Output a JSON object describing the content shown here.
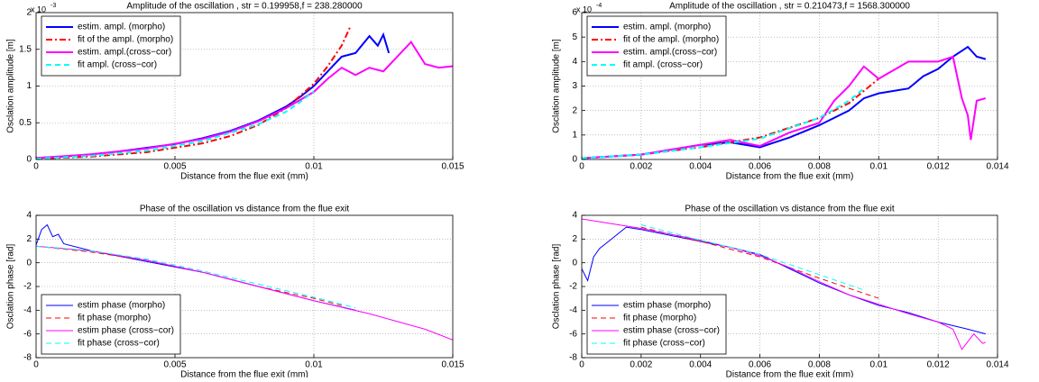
{
  "chart_data": [
    {
      "type": "line",
      "title": "Amplitude of the oscillation , str = 0.199958,f = 238.280000",
      "x_label": "Distance from the flue exit (mm)",
      "y_label": "Osclation amplitude [m]",
      "y_multiplier": {
        "base": "x 10",
        "exponent": "-3"
      },
      "xlim": [
        0,
        0.015
      ],
      "xticks": [
        0,
        0.005,
        0.01,
        0.015
      ],
      "ylim": [
        0,
        2
      ],
      "yticks": [
        0,
        0.5,
        1,
        1.5,
        2
      ],
      "grid": true,
      "legend": "upper left",
      "line_width": 2,
      "series": [
        {
          "name": "estim. ampl. (morpho)",
          "color": "#0000ff",
          "style": "solid",
          "x": [
            0,
            0.001,
            0.002,
            0.003,
            0.004,
            0.005,
            0.006,
            0.007,
            0.008,
            0.009,
            0.0095,
            0.01,
            0.0105,
            0.011,
            0.0115,
            0.012,
            0.0123,
            0.0125,
            0.0127
          ],
          "values": [
            0.02,
            0.04,
            0.07,
            0.11,
            0.16,
            0.21,
            0.29,
            0.39,
            0.53,
            0.72,
            0.85,
            1.0,
            1.2,
            1.4,
            1.45,
            1.68,
            1.55,
            1.7,
            1.45
          ]
        },
        {
          "name": "fit of the ampl. (morpho)",
          "color": "#ff0000",
          "style": "dashdot",
          "x": [
            0,
            0.002,
            0.004,
            0.006,
            0.007,
            0.008,
            0.009,
            0.01,
            0.0105,
            0.011,
            0.0113
          ],
          "values": [
            0.01,
            0.04,
            0.1,
            0.22,
            0.32,
            0.47,
            0.7,
            1.03,
            1.27,
            1.55,
            1.8
          ]
        },
        {
          "name": "estim. ampl.(cross−cor)",
          "color": "#ff00ff",
          "style": "solid",
          "x": [
            0,
            0.002,
            0.004,
            0.006,
            0.007,
            0.008,
            0.009,
            0.01,
            0.0105,
            0.011,
            0.0115,
            0.012,
            0.0125,
            0.013,
            0.0135,
            0.014,
            0.0145,
            0.015
          ],
          "values": [
            0.02,
            0.07,
            0.15,
            0.28,
            0.38,
            0.52,
            0.7,
            0.92,
            1.1,
            1.25,
            1.15,
            1.25,
            1.2,
            1.4,
            1.6,
            1.3,
            1.25,
            1.27
          ]
        },
        {
          "name": "fit ampl. (cross−cor)",
          "color": "#00ffff",
          "style": "dashed",
          "x": [
            0,
            0.002,
            0.004,
            0.006,
            0.008,
            0.009,
            0.0095,
            0.01
          ],
          "values": [
            0.01,
            0.05,
            0.12,
            0.25,
            0.48,
            0.65,
            0.78,
            0.93
          ]
        }
      ]
    },
    {
      "type": "line",
      "title": "Amplitude of the oscillation , str = 0.210473,f = 1568.300000",
      "x_label": "Distance from the flue exit (mm)",
      "y_label": "Osclation amplitude [m]",
      "y_multiplier": {
        "base": "x 10",
        "exponent": "-4"
      },
      "xlim": [
        0,
        0.014
      ],
      "xticks": [
        0,
        0.002,
        0.004,
        0.006,
        0.008,
        0.01,
        0.012,
        0.014
      ],
      "ylim": [
        0,
        6
      ],
      "yticks": [
        0,
        1,
        2,
        3,
        4,
        5,
        6
      ],
      "grid": true,
      "legend": "upper left",
      "line_width": 2,
      "series": [
        {
          "name": "estim. ampl. (morpho)",
          "color": "#0000ff",
          "style": "solid",
          "x": [
            0,
            0.002,
            0.003,
            0.004,
            0.005,
            0.006,
            0.007,
            0.008,
            0.009,
            0.0095,
            0.01,
            0.011,
            0.0115,
            0.012,
            0.0125,
            0.013,
            0.0133,
            0.0136
          ],
          "values": [
            0.05,
            0.2,
            0.4,
            0.6,
            0.7,
            0.5,
            0.9,
            1.4,
            2.0,
            2.5,
            2.7,
            2.9,
            3.4,
            3.7,
            4.2,
            4.6,
            4.2,
            4.1
          ]
        },
        {
          "name": "fit of the ampl. (morpho)",
          "color": "#ff0000",
          "style": "dashdot",
          "x": [
            0,
            0.002,
            0.004,
            0.006,
            0.008,
            0.009,
            0.0095,
            0.01
          ],
          "values": [
            0.05,
            0.2,
            0.5,
            0.9,
            1.7,
            2.3,
            2.8,
            3.3
          ]
        },
        {
          "name": "estim. ampl.(cross−cor)",
          "color": "#ff00ff",
          "style": "solid",
          "x": [
            0,
            0.002,
            0.004,
            0.005,
            0.006,
            0.007,
            0.008,
            0.0085,
            0.009,
            0.0095,
            0.01,
            0.011,
            0.012,
            0.0125,
            0.0128,
            0.013,
            0.0131,
            0.0133,
            0.0136
          ],
          "values": [
            0.05,
            0.2,
            0.6,
            0.8,
            0.55,
            1.1,
            1.5,
            2.4,
            3.0,
            3.8,
            3.3,
            4.0,
            4.0,
            4.2,
            2.5,
            1.8,
            0.8,
            2.4,
            2.5
          ]
        },
        {
          "name": "fit ampl. (cross−cor)",
          "color": "#00ffff",
          "style": "dashed",
          "x": [
            0,
            0.002,
            0.004,
            0.006,
            0.008,
            0.009,
            0.0095
          ],
          "values": [
            0.05,
            0.2,
            0.5,
            0.85,
            1.7,
            2.4,
            2.9
          ]
        }
      ]
    },
    {
      "type": "line",
      "title": "Phase of the oscillation vs distance from the flue exit",
      "x_label": "Distance from the flue exit (mm)",
      "y_label": "Osclation phase [rad]",
      "xlim": [
        0,
        0.015
      ],
      "xticks": [
        0,
        0.005,
        0.01,
        0.015
      ],
      "ylim": [
        -8,
        4
      ],
      "yticks": [
        -8,
        -6,
        -4,
        -2,
        0,
        2,
        4
      ],
      "grid": true,
      "legend": "lower left",
      "line_width": 1,
      "series": [
        {
          "name": "estim phase (morpho)",
          "color": "#0000ff",
          "style": "solid",
          "x": [
            0,
            0.0002,
            0.0004,
            0.0006,
            0.0008,
            0.001,
            0.002,
            0.004,
            0.006,
            0.008,
            0.01,
            0.0115
          ],
          "values": [
            1.5,
            2.8,
            3.2,
            2.2,
            2.4,
            1.6,
            1.0,
            0.1,
            -0.8,
            -2.0,
            -3.2,
            -4.0
          ]
        },
        {
          "name": "fit phase (morpho)",
          "color": "#ff0000",
          "style": "dashed",
          "x": [
            0,
            0.002,
            0.004,
            0.006,
            0.008,
            0.01,
            0.011
          ],
          "values": [
            1.4,
            0.9,
            0.2,
            -0.8,
            -2.0,
            -3.0,
            -3.6
          ]
        },
        {
          "name": "estim phase (cross−cor)",
          "color": "#ff00ff",
          "style": "solid",
          "x": [
            0,
            0.002,
            0.004,
            0.006,
            0.008,
            0.01,
            0.012,
            0.014,
            0.015
          ],
          "values": [
            1.4,
            1.0,
            0.2,
            -0.8,
            -2.0,
            -3.2,
            -4.3,
            -5.6,
            -6.5
          ]
        },
        {
          "name": "fit phase (cross−cor)",
          "color": "#00ffff",
          "style": "dashed",
          "x": [
            0,
            0.002,
            0.004,
            0.006,
            0.008,
            0.01,
            0.0115
          ],
          "values": [
            1.4,
            1.0,
            0.3,
            -0.7,
            -1.8,
            -2.9,
            -3.8
          ]
        }
      ]
    },
    {
      "type": "line",
      "title": "Phase of the oscillation vs distance from the flue exit",
      "x_label": "Distance from the flue exit (mm)",
      "y_label": "Osclation phase [rad]",
      "xlim": [
        0,
        0.014
      ],
      "xticks": [
        0,
        0.002,
        0.004,
        0.006,
        0.008,
        0.01,
        0.012,
        0.014
      ],
      "ylim": [
        -8,
        4
      ],
      "yticks": [
        -8,
        -6,
        -4,
        -2,
        0,
        2,
        4
      ],
      "grid": true,
      "legend": "lower left",
      "line_width": 1,
      "series": [
        {
          "name": "estim phase (morpho)",
          "color": "#0000ff",
          "style": "solid",
          "x": [
            0,
            0.0002,
            0.0004,
            0.0006,
            0.001,
            0.0015,
            0.002,
            0.003,
            0.004,
            0.005,
            0.006,
            0.007,
            0.008,
            0.009,
            0.01,
            0.011,
            0.012,
            0.013,
            0.0136
          ],
          "values": [
            -0.5,
            -1.5,
            0.5,
            1.2,
            2.0,
            3.0,
            2.8,
            2.3,
            1.8,
            1.3,
            0.7,
            -0.5,
            -1.7,
            -2.7,
            -3.6,
            -4.2,
            -5.0,
            -5.6,
            -6.0
          ]
        },
        {
          "name": "fit phase (morpho)",
          "color": "#ff0000",
          "style": "dashed",
          "x": [
            0.002,
            0.004,
            0.006,
            0.008,
            0.01
          ],
          "values": [
            3.0,
            1.8,
            0.5,
            -1.3,
            -3.0
          ]
        },
        {
          "name": "estim phase (cross−cor)",
          "color": "#ff00ff",
          "style": "solid",
          "x": [
            0,
            0.001,
            0.002,
            0.003,
            0.004,
            0.005,
            0.006,
            0.007,
            0.008,
            0.009,
            0.01,
            0.011,
            0.012,
            0.0125,
            0.0128,
            0.0132,
            0.0135,
            0.0136
          ],
          "values": [
            3.7,
            3.3,
            2.9,
            2.4,
            1.9,
            1.3,
            0.6,
            -0.4,
            -1.6,
            -2.7,
            -3.5,
            -4.3,
            -5.0,
            -5.6,
            -7.3,
            -6.0,
            -6.8,
            -6.7
          ]
        },
        {
          "name": "fit phase (cross−cor)",
          "color": "#00ffff",
          "style": "dashed",
          "x": [
            0.002,
            0.004,
            0.006,
            0.008,
            0.0095
          ],
          "values": [
            3.2,
            1.9,
            0.7,
            -1.0,
            -2.3
          ]
        }
      ]
    }
  ]
}
